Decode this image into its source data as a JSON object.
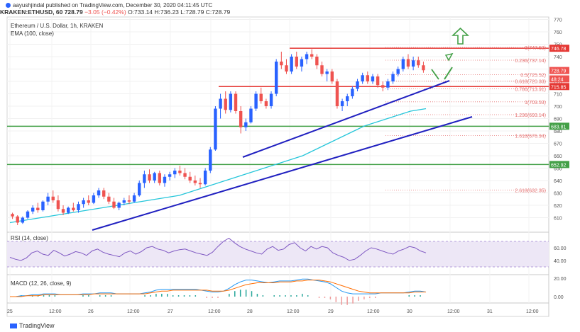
{
  "header": {
    "author_line": "aayushjindal published on TradingView.com, December 30, 2020 04:11:45 UTC",
    "symbol": "KRAKEN:ETHUSD, 60",
    "last": "728.79",
    "change": "−3.05 (−0.42%)",
    "ohlc": "O:733.14 H:736.23 L:728.79 C:728.79"
  },
  "chart_title": "Ethereum / U.S. Dollar, 1h, KRAKEN",
  "ema_label": "EMA (100, close)",
  "rsi_label": "RSI (14, close)",
  "macd_label": "MACD (12, 26, close, 9)",
  "brand": "TradingView",
  "colors": {
    "up": "#2962ff",
    "down": "#ef5350",
    "ema": "#26c6da",
    "trend": "#2020c0",
    "resistance": "#e53935",
    "support": "#43a047",
    "fib": "#e57373",
    "rsi_line": "#7e57c2",
    "macd_line": "#2196f3",
    "signal_line": "#ff6d00"
  },
  "chart_data": {
    "type": "candlestick",
    "y_range": [
      600,
      772
    ],
    "y_ticks": [
      610,
      620,
      630,
      640,
      650,
      660,
      670,
      680,
      690,
      700,
      710,
      720,
      730,
      740,
      750,
      760,
      770
    ],
    "x_tick_labels": [
      "25",
      "12:00",
      "26",
      "12:00",
      "27",
      "12:00",
      "28",
      "12:00",
      "29",
      "12:00",
      "30",
      "12:00",
      "31",
      "12:00"
    ],
    "candles": [
      [
        613,
        614,
        609,
        611
      ],
      [
        611,
        612,
        604,
        606
      ],
      [
        606,
        611,
        605,
        610
      ],
      [
        610,
        616,
        609,
        615
      ],
      [
        615,
        620,
        613,
        618
      ],
      [
        618,
        622,
        614,
        616
      ],
      [
        616,
        624,
        615,
        623
      ],
      [
        623,
        630,
        620,
        627
      ],
      [
        627,
        632,
        622,
        624
      ],
      [
        624,
        628,
        615,
        617
      ],
      [
        617,
        620,
        612,
        614
      ],
      [
        614,
        619,
        613,
        618
      ],
      [
        618,
        622,
        615,
        616
      ],
      [
        616,
        623,
        614,
        621
      ],
      [
        621,
        626,
        618,
        624
      ],
      [
        624,
        628,
        620,
        622
      ],
      [
        622,
        630,
        621,
        628
      ],
      [
        628,
        634,
        626,
        632
      ],
      [
        632,
        634,
        625,
        627
      ],
      [
        627,
        630,
        621,
        623
      ],
      [
        623,
        626,
        617,
        618
      ],
      [
        618,
        623,
        616,
        622
      ],
      [
        622,
        626,
        620,
        624
      ],
      [
        624,
        628,
        621,
        623
      ],
      [
        623,
        630,
        622,
        628
      ],
      [
        628,
        640,
        627,
        638
      ],
      [
        638,
        648,
        634,
        645
      ],
      [
        645,
        649,
        638,
        640
      ],
      [
        640,
        647,
        638,
        646
      ],
      [
        646,
        648,
        636,
        638
      ],
      [
        638,
        645,
        635,
        643
      ],
      [
        643,
        647,
        640,
        645
      ],
      [
        645,
        650,
        642,
        648
      ],
      [
        648,
        652,
        644,
        646
      ],
      [
        646,
        650,
        641,
        643
      ],
      [
        643,
        647,
        638,
        640
      ],
      [
        640,
        644,
        636,
        638
      ],
      [
        638,
        642,
        634,
        637
      ],
      [
        637,
        650,
        636,
        648
      ],
      [
        648,
        667,
        646,
        665
      ],
      [
        665,
        700,
        664,
        698
      ],
      [
        698,
        710,
        690,
        706
      ],
      [
        706,
        712,
        694,
        697
      ],
      [
        697,
        712,
        695,
        710
      ],
      [
        710,
        712,
        694,
        696
      ],
      [
        696,
        700,
        678,
        683
      ],
      [
        683,
        690,
        680,
        687
      ],
      [
        687,
        700,
        686,
        698
      ],
      [
        698,
        712,
        696,
        710
      ],
      [
        710,
        715,
        702,
        704
      ],
      [
        704,
        706,
        698,
        700
      ],
      [
        700,
        712,
        698,
        710
      ],
      [
        710,
        738,
        708,
        736
      ],
      [
        736,
        744,
        730,
        733
      ],
      [
        733,
        738,
        726,
        728
      ],
      [
        728,
        742,
        726,
        740
      ],
      [
        740,
        744,
        730,
        732
      ],
      [
        732,
        740,
        728,
        738
      ],
      [
        738,
        744,
        734,
        742
      ],
      [
        742,
        746,
        738,
        740
      ],
      [
        740,
        742,
        730,
        733
      ],
      [
        733,
        736,
        724,
        726
      ],
      [
        726,
        730,
        720,
        728
      ],
      [
        728,
        730,
        718,
        720
      ],
      [
        720,
        722,
        698,
        700
      ],
      [
        700,
        706,
        696,
        704
      ],
      [
        704,
        710,
        700,
        708
      ],
      [
        708,
        716,
        706,
        714
      ],
      [
        714,
        722,
        712,
        720
      ],
      [
        720,
        727,
        718,
        725
      ],
      [
        725,
        728,
        718,
        720
      ],
      [
        720,
        726,
        718,
        724
      ],
      [
        724,
        726,
        715,
        717
      ],
      [
        717,
        720,
        712,
        715
      ],
      [
        715,
        722,
        713,
        720
      ],
      [
        720,
        728,
        718,
        726
      ],
      [
        726,
        732,
        724,
        730
      ],
      [
        730,
        740,
        728,
        738
      ],
      [
        738,
        742,
        730,
        732
      ],
      [
        732,
        740,
        729,
        737
      ],
      [
        737,
        740,
        731,
        733
      ],
      [
        733,
        736,
        727,
        729
      ]
    ],
    "ema": [
      606,
      607,
      608,
      609,
      610,
      611,
      612,
      613,
      614,
      615,
      616,
      617,
      618,
      619,
      620,
      621,
      622,
      623,
      624,
      625,
      626,
      627,
      628,
      630,
      632,
      634,
      636,
      638,
      640,
      642,
      644,
      646,
      648,
      650,
      652,
      654,
      656,
      658,
      660,
      663,
      666,
      669,
      672,
      675,
      678,
      681,
      684,
      686,
      688,
      690,
      692,
      694,
      696,
      697,
      698
    ],
    "levels": [
      {
        "price": 746.78,
        "label": "746.78",
        "kind": "resistance"
      },
      {
        "price": 715.85,
        "label": "715.85",
        "kind": "resistance"
      },
      {
        "price": 683.81,
        "label": "683.81",
        "kind": "support"
      },
      {
        "price": 652.92,
        "label": "652.92",
        "kind": "support"
      }
    ],
    "price_tags": [
      {
        "price": 728.79,
        "label": "728.79"
      },
      {
        "price": 722.0,
        "label": "48:24"
      }
    ],
    "fibs": [
      {
        "price": 747.52,
        "label": "0(747.52)"
      },
      {
        "price": 737.14,
        "label": "0.236(737.14)"
      },
      {
        "price": 725.52,
        "label": "0.5(725.52)"
      },
      {
        "price": 720.33,
        "label": "0.618(720.33)"
      },
      {
        "price": 713.91,
        "label": "0.786(713.91)"
      },
      {
        "price": 703.53,
        "label": "1(703.53)"
      },
      {
        "price": 693.14,
        "label": "1.236(693.14)"
      },
      {
        "price": 676.34,
        "label": "1.618(676.34)"
      },
      {
        "price": 632.35,
        "label": "2.618(632.35)"
      }
    ],
    "rsi": {
      "ticks": [
        "60.00",
        "40.00"
      ],
      "values": [
        45,
        42,
        40,
        44,
        52,
        55,
        50,
        48,
        56,
        52,
        47,
        50,
        54,
        52,
        48,
        55,
        58,
        53,
        50,
        48,
        46,
        52,
        55,
        50,
        54,
        60,
        62,
        58,
        56,
        52,
        55,
        57,
        58,
        55,
        52,
        50,
        48,
        53,
        62,
        70,
        75,
        68,
        62,
        58,
        55,
        52,
        50,
        58,
        62,
        56,
        58,
        65,
        68,
        60,
        55,
        62,
        58,
        62,
        60,
        52,
        48,
        45,
        40,
        42,
        48,
        55,
        60,
        58,
        55,
        52,
        50,
        55,
        58,
        62,
        60,
        55,
        52
      ]
    },
    "macd": {
      "ticks": [
        "20.00",
        "0.00"
      ],
      "macd": [
        0,
        0,
        1,
        1,
        2,
        2,
        3,
        3,
        3,
        2,
        2,
        2,
        2,
        3,
        3,
        3,
        4,
        4,
        4,
        3,
        3,
        3,
        3,
        3,
        4,
        5,
        7,
        8,
        8,
        8,
        8,
        8,
        8,
        8,
        7,
        6,
        5,
        5,
        6,
        9,
        13,
        16,
        18,
        18,
        17,
        16,
        15,
        16,
        17,
        17,
        17,
        18,
        19,
        19,
        18,
        17,
        16,
        14,
        10,
        6,
        4,
        3,
        3,
        3,
        3,
        3,
        4,
        4,
        4,
        4,
        4,
        5,
        6,
        6,
        5
      ],
      "signal": [
        0,
        0,
        0,
        1,
        1,
        1,
        2,
        2,
        2,
        2,
        2,
        2,
        2,
        2,
        2,
        3,
        3,
        3,
        3,
        3,
        3,
        3,
        3,
        3,
        3,
        4,
        5,
        6,
        6,
        7,
        7,
        7,
        7,
        7,
        7,
        7,
        6,
        6,
        6,
        7,
        9,
        11,
        13,
        14,
        15,
        15,
        15,
        15,
        16,
        16,
        16,
        17,
        17,
        18,
        18,
        18,
        17,
        16,
        14,
        12,
        10,
        8,
        6,
        5,
        4,
        4,
        4,
        4,
        4,
        4,
        4,
        4,
        5,
        5,
        5
      ]
    }
  }
}
